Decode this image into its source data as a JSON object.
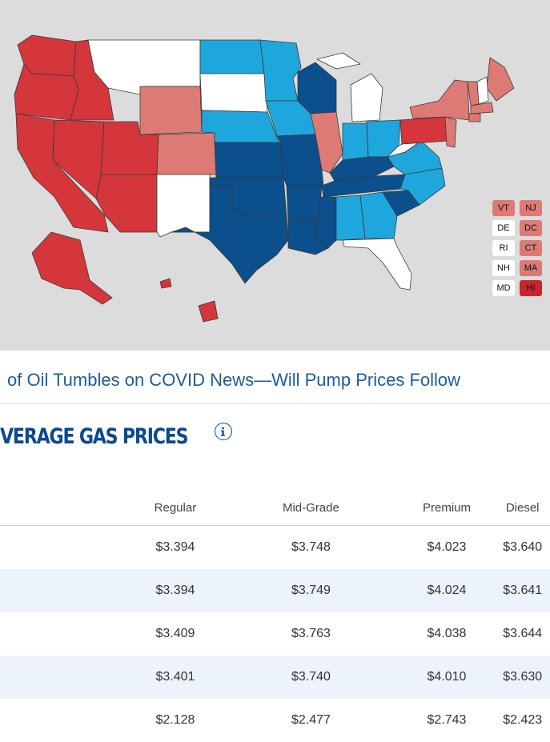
{
  "colors": {
    "lowest": "#0b4f8c",
    "low": "#1ea7dd",
    "mid": "#ffffff",
    "high": "#de7a76",
    "higher": "#d4363c",
    "highest": "#c8262d",
    "map_background": "#dcdcdc",
    "brand_blue": "#0b4a8f",
    "link_blue": "#1a5d9f"
  },
  "legend": [
    {
      "abbr": "VT",
      "level": "high"
    },
    {
      "abbr": "NJ",
      "level": "high"
    },
    {
      "abbr": "DE",
      "level": "mid"
    },
    {
      "abbr": "DC",
      "level": "high"
    },
    {
      "abbr": "RI",
      "level": "mid"
    },
    {
      "abbr": "CT",
      "level": "high"
    },
    {
      "abbr": "NH",
      "level": "mid"
    },
    {
      "abbr": "MA",
      "level": "high"
    },
    {
      "abbr": "MD",
      "level": "mid"
    },
    {
      "abbr": "HI",
      "level": "highest"
    }
  ],
  "headline": {
    "text": "of Oil Tumbles on COVID News—Will Pump Prices Follow"
  },
  "section_title": "VERAGE GAS PRICES",
  "info_icon": "info-icon",
  "table": {
    "columns": [
      "",
      "Regular",
      "Mid-Grade",
      "Premium",
      "Diesel"
    ],
    "rows": [
      [
        "$3.394",
        "$3.748",
        "$4.023",
        "$3.640"
      ],
      [
        "$3.394",
        "$3.749",
        "$4.024",
        "$3.641"
      ],
      [
        "$3.409",
        "$3.763",
        "$4.038",
        "$3.644"
      ],
      [
        "$3.401",
        "$3.740",
        "$4.010",
        "$3.630"
      ],
      [
        "$2.128",
        "$2.477",
        "$2.743",
        "$2.423"
      ]
    ]
  }
}
